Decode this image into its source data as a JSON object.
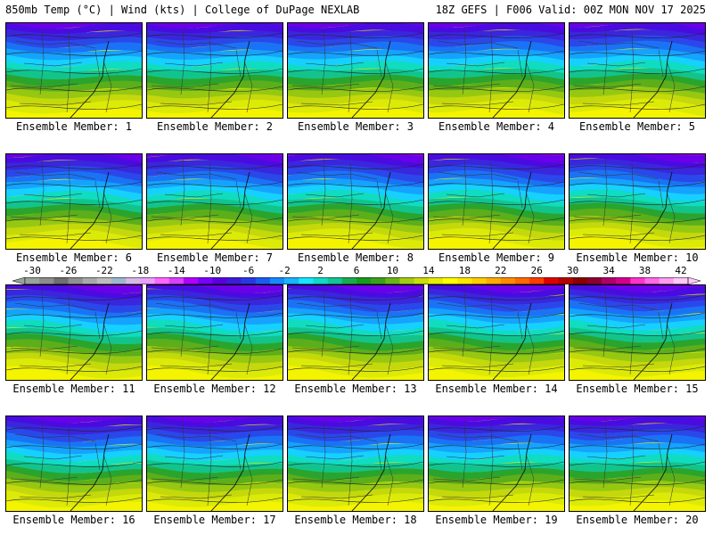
{
  "header": {
    "left": "850mb Temp (°C) | Wind (kts) | College of DuPage NEXLAB",
    "right": "18Z GEFS | F006 Valid: 00Z MON NOV 17 2025"
  },
  "panels": [
    {
      "label": "Ensemble Member: 1"
    },
    {
      "label": "Ensemble Member: 2"
    },
    {
      "label": "Ensemble Member: 3"
    },
    {
      "label": "Ensemble Member: 4"
    },
    {
      "label": "Ensemble Member: 5"
    },
    {
      "label": "Ensemble Member: 6"
    },
    {
      "label": "Ensemble Member: 7"
    },
    {
      "label": "Ensemble Member: 8"
    },
    {
      "label": "Ensemble Member: 9"
    },
    {
      "label": "Ensemble Member: 10"
    },
    {
      "label": "Ensemble Member: 11"
    },
    {
      "label": "Ensemble Member: 12"
    },
    {
      "label": "Ensemble Member: 13"
    },
    {
      "label": "Ensemble Member: 14"
    },
    {
      "label": "Ensemble Member: 15"
    },
    {
      "label": "Ensemble Member: 16"
    },
    {
      "label": "Ensemble Member: 17"
    },
    {
      "label": "Ensemble Member: 18"
    },
    {
      "label": "Ensemble Member: 19"
    },
    {
      "label": "Ensemble Member: 20"
    }
  ],
  "colorbar": {
    "ticks": [
      "-30",
      "-26",
      "-22",
      "-18",
      "-14",
      "-10",
      "-6",
      "-2",
      "2",
      "6",
      "10",
      "14",
      "18",
      "22",
      "26",
      "30",
      "34",
      "38",
      "42"
    ],
    "colors": [
      "#9aa39a",
      "#8d8d8d",
      "#6f6f6f",
      "#8f8f8f",
      "#a9a9a9",
      "#bdbdbd",
      "#9fb6cf",
      "#d6b8e8",
      "#e8a0ff",
      "#ff66ff",
      "#d940ff",
      "#b000ff",
      "#7a00ff",
      "#5a00e0",
      "#3d1bd9",
      "#2838e6",
      "#1a5cf0",
      "#1789ff",
      "#19b4ff",
      "#1ae4ff",
      "#10d9c8",
      "#12c496",
      "#1aab52",
      "#199a1e",
      "#3aa01a",
      "#6ab41a",
      "#a2cc12",
      "#ccdd0c",
      "#e6ec05",
      "#ffff00",
      "#ffe600",
      "#ffcc00",
      "#ffad00",
      "#ff8c00",
      "#ff6a00",
      "#ff3d00",
      "#e00000",
      "#b50000",
      "#8a0000",
      "#8c0030",
      "#b0006a",
      "#d4008c",
      "#ff33cc",
      "#ff6ae6",
      "#ff9cf0",
      "#ffc8f8"
    ]
  },
  "map_fill_colors": [
    "#8e00e0",
    "#6a00ea",
    "#4a0be0",
    "#3a26dd",
    "#2a48ea",
    "#1a73f5",
    "#16a2ff",
    "#16d0ff",
    "#10dcc0",
    "#12c48c",
    "#2aa42c",
    "#5cae1a",
    "#96c812",
    "#c4d80c",
    "#dcea08",
    "#f4f400"
  ]
}
